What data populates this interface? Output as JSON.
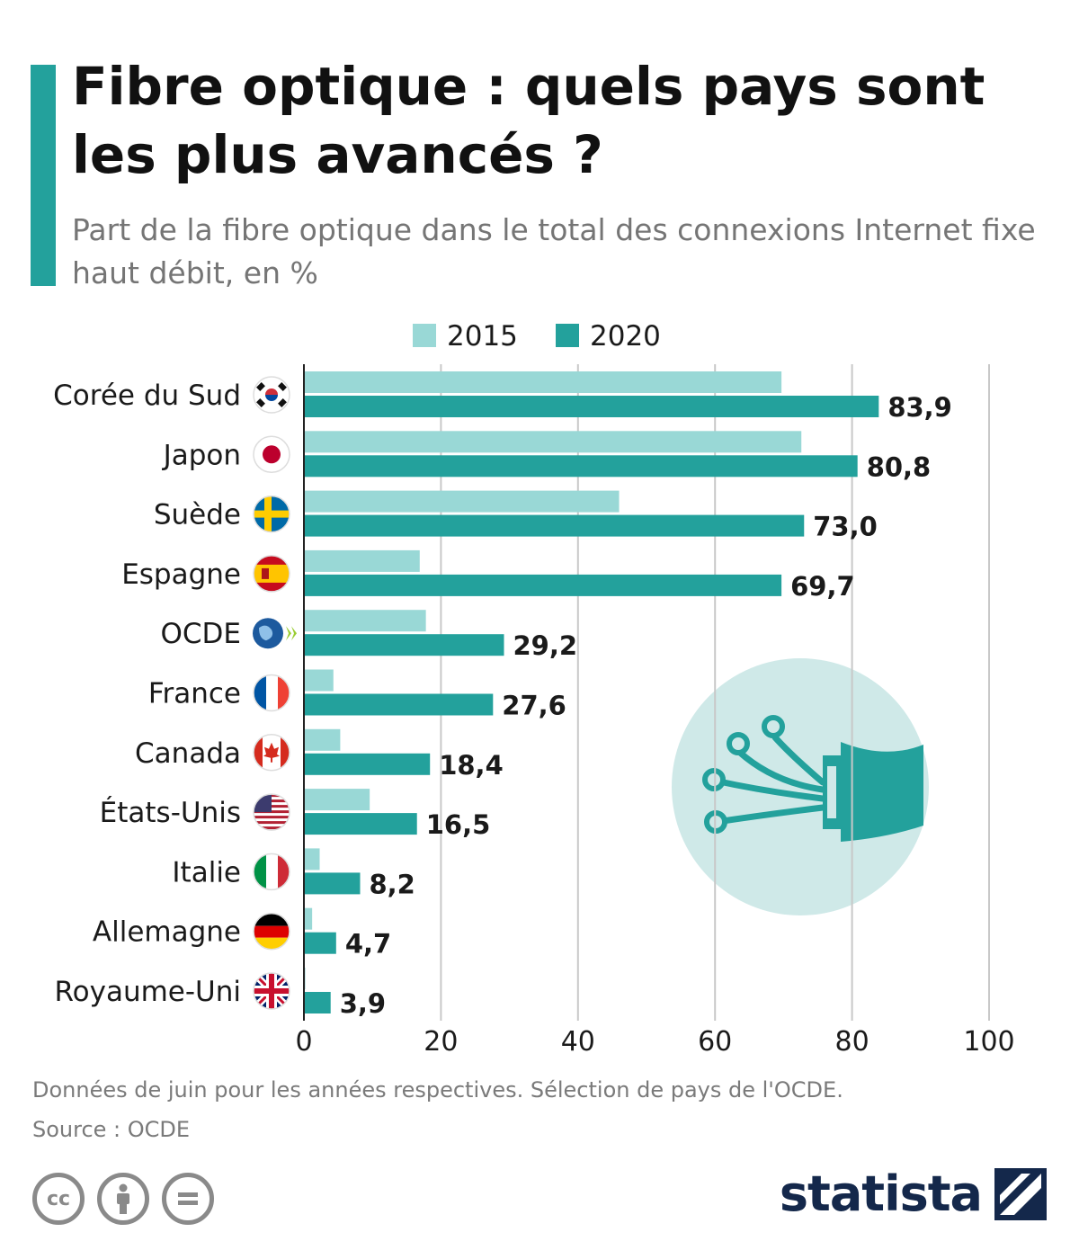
{
  "header": {
    "title": "Fibre optique : quels pays sont les plus avancés ?",
    "subtitle": "Part de la fibre optique dans le total des connexions Internet fixe haut débit, en %"
  },
  "colors": {
    "accent": "#23a19c",
    "light": "#99d8d6",
    "brand": "#14284b",
    "grid": "#c8c8c8"
  },
  "chart_data": {
    "type": "bar",
    "orientation": "horizontal",
    "categories": [
      "Corée du Sud",
      "Japon",
      "Suède",
      "Espagne",
      "OCDE",
      "France",
      "Canada",
      "États-Unis",
      "Italie",
      "Allemagne",
      "Royaume-Uni"
    ],
    "flags": [
      "kr",
      "jp",
      "se",
      "es",
      "oecd",
      "fr",
      "ca",
      "us",
      "it",
      "de",
      "gb"
    ],
    "series": [
      {
        "name": "2015",
        "color": "#99d8d6",
        "values": [
          69.7,
          72.6,
          46.0,
          16.9,
          17.8,
          4.3,
          5.3,
          9.6,
          2.3,
          1.2,
          0.2
        ]
      },
      {
        "name": "2020",
        "color": "#23a19c",
        "values": [
          83.9,
          80.8,
          73.0,
          69.7,
          29.2,
          27.6,
          18.4,
          16.5,
          8.2,
          4.7,
          3.9
        ]
      }
    ],
    "value_labels": [
      "83,9",
      "80,8",
      "73,0",
      "69,7",
      "29,2",
      "27,6",
      "18,4",
      "16,5",
      "8,2",
      "4,7",
      "3,9"
    ],
    "xlim": [
      0,
      100
    ],
    "xticks": [
      0,
      20,
      40,
      60,
      80,
      100
    ],
    "grid": true,
    "legend_position": "top"
  },
  "footer": {
    "note": "Données de juin pour les années respectives. Sélection de pays de l'OCDE.",
    "source": "Source : OCDE",
    "brand": "statista",
    "cc_icons": [
      "cc-icon",
      "by-icon",
      "nd-icon"
    ]
  }
}
